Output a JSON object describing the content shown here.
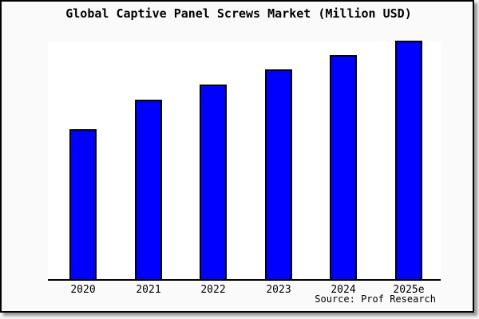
{
  "chart_data": {
    "type": "bar",
    "title": "Global Captive Panel Screws Market (Million USD)",
    "categories": [
      "2020",
      "2021",
      "2022",
      "2023",
      "2024",
      "2025e"
    ],
    "values": [
      62.9,
      75.3,
      81.6,
      88.0,
      94.0,
      100.0
    ],
    "values_note": "y-axis has no tick labels; values are relative bar heights as percent of tallest (2025e) bar",
    "xlabel": "",
    "ylabel": "",
    "grid": false,
    "legend": false,
    "source": "Source: Prof Research",
    "colors": {
      "bar_fill": "#0000ff",
      "bar_border": "#000000",
      "axis_line": "#000000",
      "plot_background": "#ffffff",
      "canvas_background": "#fafafa",
      "frame_border": "#000000",
      "title_text": "#000000"
    }
  }
}
